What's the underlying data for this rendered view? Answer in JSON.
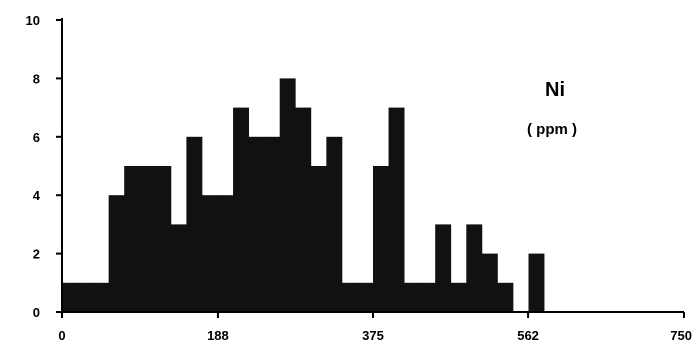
{
  "chart_data": {
    "type": "bar",
    "annotation_title": "Ni",
    "annotation_unit": "( ppm )",
    "bin_width": 18.75,
    "bin_starts": [
      0,
      18.75,
      37.5,
      56.25,
      75,
      93.75,
      112.5,
      131.25,
      150,
      168.75,
      187.5,
      206.25,
      225,
      243.75,
      262.5,
      281.25,
      300,
      318.75,
      337.5,
      356.25,
      375,
      393.75,
      412.5,
      431.25,
      450,
      468.75,
      487.5,
      506.25,
      525,
      543.75,
      562.5,
      581.25,
      600,
      618.75,
      637.5,
      656.25,
      675,
      693.75,
      712.5,
      731.25
    ],
    "values": [
      1,
      1,
      1,
      4,
      5,
      5,
      5,
      3,
      6,
      4,
      4,
      7,
      6,
      6,
      8,
      7,
      5,
      6,
      1,
      1,
      5,
      7,
      1,
      1,
      3,
      1,
      3,
      2,
      1,
      0,
      2,
      0,
      0,
      0,
      0,
      0,
      0,
      0,
      0,
      0
    ],
    "xlim": [
      0,
      750
    ],
    "ylim": [
      0,
      10
    ],
    "x_ticks": [
      "0",
      "188",
      "375",
      "562",
      "750"
    ],
    "y_ticks": [
      "0",
      "2",
      "4",
      "6",
      "8",
      "10"
    ],
    "xlabel": "",
    "ylabel": "",
    "bar_color": "#111111",
    "axis_color": "#000000"
  }
}
